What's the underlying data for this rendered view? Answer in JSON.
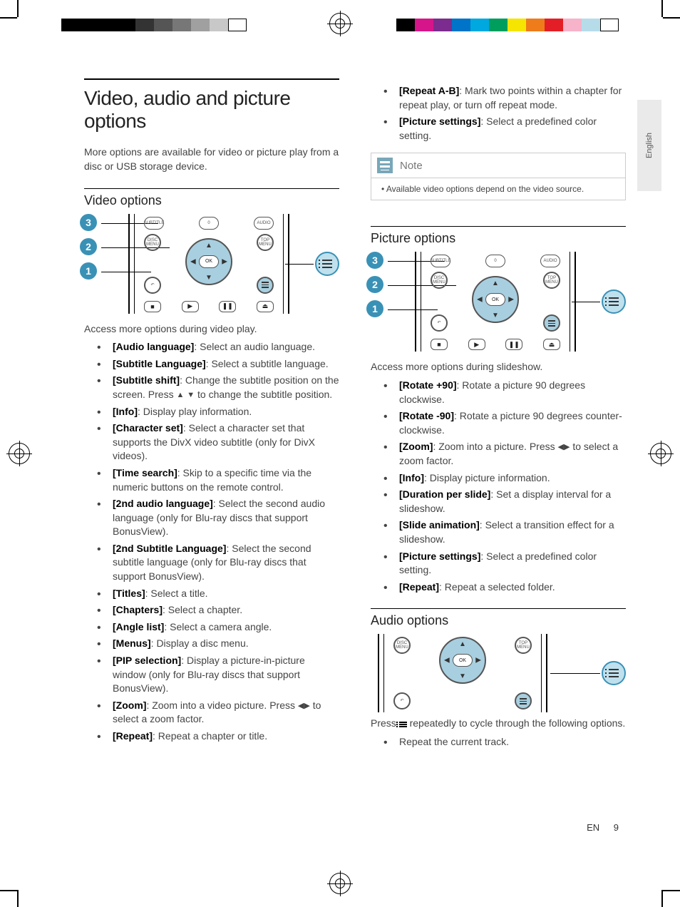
{
  "language_tab": "English",
  "footer": {
    "lang": "EN",
    "page": "9"
  },
  "swatches_left": [
    "#000000",
    "#000000",
    "#000000",
    "#000000",
    "#333333",
    "#555555",
    "#777777",
    "#a0a0a0",
    "#c8c8c8",
    "#ffffff"
  ],
  "swatches_right": [
    "#000000",
    "#d7158a",
    "#7b2c8e",
    "#0074c8",
    "#00a8e0",
    "#009e5d",
    "#f6e500",
    "#ee7c1a",
    "#e41e26",
    "#f6b3c9",
    "#b6dce9",
    "#ffffff"
  ],
  "main_heading": "Video, audio and picture options",
  "intro": "More options are available for video or picture play from a disc or USB storage device.",
  "video_section": {
    "heading": "Video options",
    "callouts": [
      "3",
      "2",
      "1"
    ],
    "lead": "Access more options during video play.",
    "items": [
      {
        "label": "[Audio language]",
        "text": ": Select an audio language."
      },
      {
        "label": "[Subtitle Language]",
        "text": ": Select a subtitle language."
      },
      {
        "label": "[Subtitle shift]",
        "text": ": Change the subtitle position on the screen. Press ",
        "suffix": " to change the subtitle position.",
        "glyph": "ud"
      },
      {
        "label": "[Info]",
        "text": ": Display play information."
      },
      {
        "label": "[Character set]",
        "text": ": Select a character set that supports the DivX video subtitle (only for DivX videos)."
      },
      {
        "label": "[Time search]",
        "text": ": Skip to a specific time via the numeric buttons on the remote control."
      },
      {
        "label": "[2nd audio language]",
        "text": ": Select the second audio language (only for Blu-ray discs that support BonusView)."
      },
      {
        "label": "[2nd Subtitle Language]",
        "text": ": Select the second subtitle language (only for Blu-ray discs that support BonusView)."
      },
      {
        "label": "[Titles]",
        "text": ": Select a title."
      },
      {
        "label": "[Chapters]",
        "text": ": Select a chapter."
      },
      {
        "label": "[Angle list]",
        "text": ": Select a camera angle."
      },
      {
        "label": "[Menus]",
        "text": ": Display a disc menu."
      },
      {
        "label": "[PIP selection]",
        "text": ": Display a picture-in-picture window (only for Blu-ray discs that support BonusView)."
      },
      {
        "label": "[Zoom]",
        "text": ": Zoom into a video picture. Press ",
        "suffix": " to select a zoom factor.",
        "glyph": "lr"
      },
      {
        "label": "[Repeat]",
        "text": ": Repeat a chapter or title."
      }
    ]
  },
  "video_extra_items": [
    {
      "label": "[Repeat A-B]",
      "text": ": Mark two points within a chapter for repeat play, or turn off repeat mode."
    },
    {
      "label": "[Picture settings]",
      "text": ": Select a predefined color setting."
    }
  ],
  "note": {
    "title": "Note",
    "body": "Available video options depend on the video source."
  },
  "picture_section": {
    "heading": "Picture options",
    "callouts": [
      "3",
      "2",
      "1"
    ],
    "lead": "Access more options during slideshow.",
    "items": [
      {
        "label": "[Rotate +90]",
        "text": ": Rotate a picture 90 degrees clockwise."
      },
      {
        "label": "[Rotate -90]",
        "text": ": Rotate a picture 90 degrees counter-clockwise."
      },
      {
        "label": "[Zoom]",
        "text": ": Zoom into a picture. Press ",
        "suffix": " to select a zoom factor.",
        "glyph": "lr"
      },
      {
        "label": "[Info]",
        "text": ": Display picture information."
      },
      {
        "label": "[Duration per slide]",
        "text": ": Set a display interval for a slideshow."
      },
      {
        "label": "[Slide animation]",
        "text": ": Select a transition effect for a slideshow."
      },
      {
        "label": "[Picture settings]",
        "text": ": Select a predefined color setting."
      },
      {
        "label": "[Repeat]",
        "text": ": Repeat a selected folder."
      }
    ]
  },
  "audio_section": {
    "heading": "Audio options",
    "lead_before": "Press ",
    "lead_after": " repeatedly to cycle through the following options.",
    "items": [
      {
        "text": "Repeat the current track."
      }
    ]
  },
  "remote_labels": {
    "subtitle": "SUBTITLE",
    "zero": "0",
    "audio": "AUDIO",
    "disc_menu": "DISC\nMENU",
    "top_menu": "TOP\nMENU",
    "ok": "OK",
    "back": "↶",
    "stop": "■",
    "play": "▶",
    "pause": "❚❚",
    "eject": "⏏"
  },
  "colors": {
    "accent": "#3a91b6",
    "accent_fill": "#a8cfe0",
    "accent_light": "#bfe0ed",
    "text": "#222222",
    "muted": "#777777",
    "rule": "#000000",
    "box_border": "#cccccc",
    "side_tab": "#eaeaea"
  },
  "typography": {
    "h1_size": 28,
    "h2_size": 18,
    "body_size": 14,
    "note_body_size": 12
  }
}
